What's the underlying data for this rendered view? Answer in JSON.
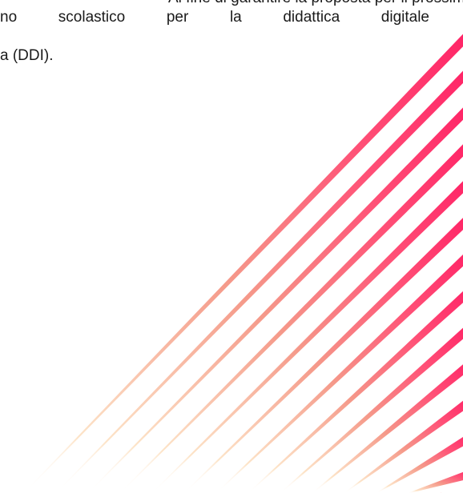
{
  "document": {
    "line_top_partial": "Al fine di garantire la proposta per il prossimo",
    "line1": "no scolastico per la didattica digitale",
    "line2": "a (DDI)."
  },
  "decoration": {
    "stripe_color_start": "#fbd9b2",
    "stripe_color_mid": "#f46b73",
    "stripe_color_end": "#ff2a6d"
  }
}
